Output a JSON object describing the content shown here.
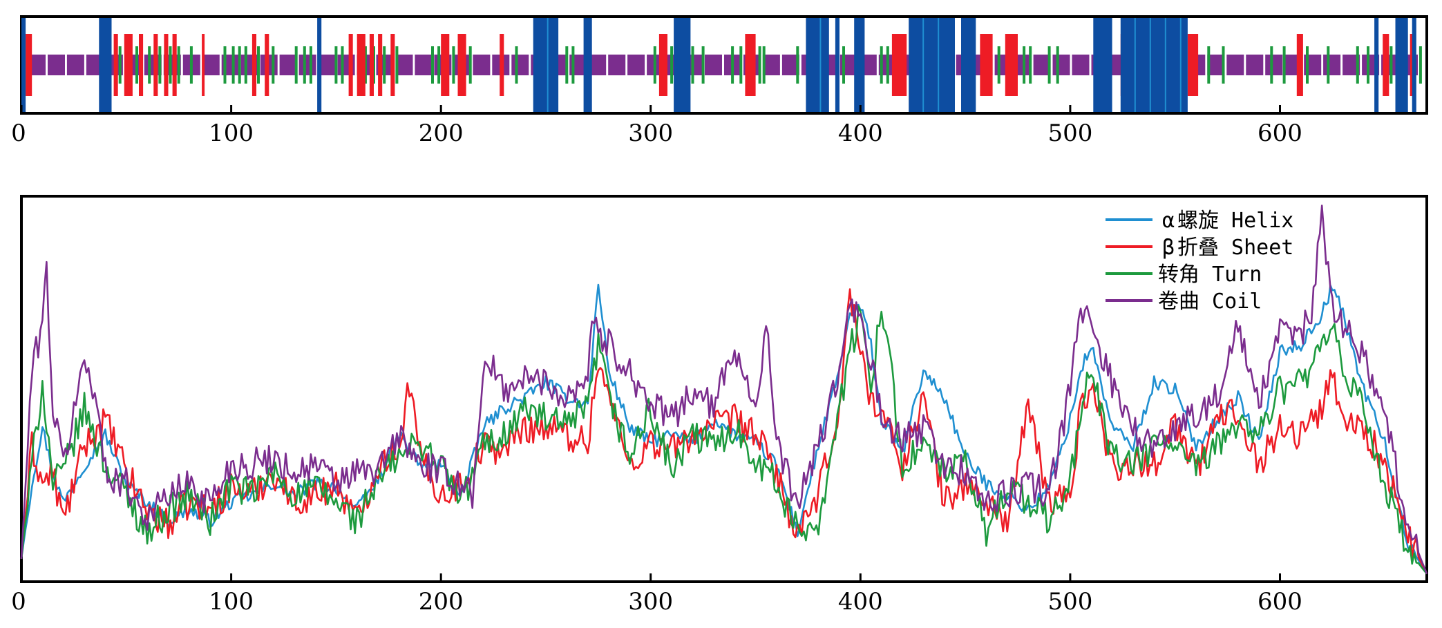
{
  "chart_data": [
    {
      "type": "bar",
      "xlim": [
        0,
        670
      ],
      "xticks": [
        "0",
        "100",
        "200",
        "300",
        "400",
        "500",
        "600"
      ],
      "colors": {
        "helix": "#0d4da1",
        "helix_light": "#1f8fd1",
        "sheet": "#ee1c25",
        "turn": "#1d9a3e",
        "coil": "#7b2d8e"
      },
      "helix_regions": [
        [
          0,
          2
        ],
        [
          37,
          43
        ],
        [
          141,
          143
        ],
        [
          244,
          256
        ],
        [
          268,
          272
        ],
        [
          311,
          319
        ],
        [
          374,
          385
        ],
        [
          388,
          390
        ],
        [
          397,
          402
        ],
        [
          423,
          445
        ],
        [
          448,
          455
        ],
        [
          511,
          520
        ],
        [
          524,
          556
        ],
        [
          645,
          647
        ],
        [
          655,
          661
        ],
        [
          663,
          665
        ]
      ],
      "sheet_regions": [
        [
          2,
          5
        ],
        [
          44,
          46
        ],
        [
          49,
          53
        ],
        [
          56,
          58
        ],
        [
          63,
          65
        ],
        [
          68,
          70
        ],
        [
          72,
          74
        ],
        [
          86,
          87
        ],
        [
          110,
          112
        ],
        [
          116,
          118
        ],
        [
          156,
          158
        ],
        [
          160,
          164
        ],
        [
          166,
          168
        ],
        [
          170,
          172
        ],
        [
          176,
          178
        ],
        [
          200,
          204
        ],
        [
          208,
          212
        ],
        [
          228,
          230
        ],
        [
          304,
          308
        ],
        [
          345,
          350
        ],
        [
          415,
          422
        ],
        [
          457,
          463
        ],
        [
          469,
          475
        ],
        [
          524,
          528
        ],
        [
          556,
          561
        ],
        [
          608,
          611
        ],
        [
          649,
          652
        ],
        [
          662,
          664
        ]
      ],
      "turn_positions": [
        42,
        47,
        55,
        61,
        66,
        71,
        75,
        81,
        97,
        101,
        104,
        107,
        113,
        120,
        131,
        135,
        138,
        150,
        153,
        157,
        164,
        168,
        173,
        179,
        196,
        199,
        206,
        214,
        236,
        252,
        260,
        263,
        302,
        306,
        310,
        320,
        325,
        339,
        343,
        352,
        354,
        370,
        392,
        410,
        413,
        425,
        454,
        466,
        478,
        481,
        490,
        494,
        566,
        573,
        596,
        602,
        613,
        623,
        637,
        642,
        653,
        667
      ],
      "coil_segments": 72
    },
    {
      "type": "line",
      "xlim": [
        0,
        670
      ],
      "xticks": [
        "0",
        "100",
        "200",
        "300",
        "400",
        "500",
        "600"
      ],
      "series": [
        {
          "name": "α螺旋 Helix",
          "color": "#1f8fd1",
          "x": [
            0,
            5,
            10,
            15,
            20,
            30,
            40,
            50,
            60,
            70,
            80,
            90,
            100,
            110,
            120,
            130,
            140,
            150,
            160,
            170,
            180,
            190,
            200,
            210,
            220,
            230,
            240,
            250,
            260,
            270,
            275,
            280,
            290,
            300,
            310,
            320,
            330,
            340,
            350,
            360,
            370,
            380,
            390,
            395,
            400,
            405,
            410,
            420,
            430,
            440,
            450,
            460,
            470,
            480,
            490,
            500,
            505,
            510,
            520,
            530,
            540,
            550,
            560,
            570,
            580,
            590,
            600,
            610,
            620,
            625,
            630,
            640,
            650,
            660,
            670
          ],
          "y": [
            0.05,
            0.25,
            0.4,
            0.28,
            0.2,
            0.3,
            0.38,
            0.25,
            0.2,
            0.15,
            0.18,
            0.15,
            0.2,
            0.22,
            0.25,
            0.22,
            0.25,
            0.24,
            0.18,
            0.26,
            0.38,
            0.3,
            0.3,
            0.22,
            0.4,
            0.45,
            0.48,
            0.52,
            0.48,
            0.46,
            0.78,
            0.55,
            0.4,
            0.36,
            0.38,
            0.36,
            0.42,
            0.38,
            0.36,
            0.3,
            0.12,
            0.35,
            0.55,
            0.7,
            0.72,
            0.62,
            0.42,
            0.33,
            0.55,
            0.48,
            0.32,
            0.25,
            0.22,
            0.18,
            0.24,
            0.42,
            0.55,
            0.62,
            0.4,
            0.35,
            0.52,
            0.5,
            0.35,
            0.42,
            0.48,
            0.36,
            0.6,
            0.62,
            0.7,
            0.78,
            0.7,
            0.5,
            0.36,
            0.1,
            0.01
          ]
        },
        {
          "name": "β折叠 Sheet",
          "color": "#ee1c25",
          "x": [
            0,
            5,
            10,
            15,
            20,
            30,
            40,
            50,
            60,
            70,
            80,
            90,
            100,
            110,
            120,
            130,
            140,
            150,
            160,
            170,
            180,
            185,
            190,
            200,
            210,
            220,
            230,
            240,
            250,
            260,
            270,
            275,
            280,
            290,
            300,
            310,
            320,
            330,
            340,
            350,
            360,
            370,
            380,
            390,
            395,
            400,
            405,
            410,
            420,
            430,
            440,
            450,
            460,
            470,
            480,
            490,
            500,
            505,
            510,
            520,
            530,
            540,
            550,
            560,
            570,
            580,
            590,
            600,
            610,
            620,
            625,
            630,
            640,
            650,
            660,
            670
          ],
          "y": [
            0.05,
            0.35,
            0.25,
            0.28,
            0.15,
            0.35,
            0.42,
            0.28,
            0.18,
            0.14,
            0.2,
            0.18,
            0.24,
            0.22,
            0.28,
            0.2,
            0.22,
            0.25,
            0.15,
            0.3,
            0.35,
            0.52,
            0.32,
            0.22,
            0.25,
            0.35,
            0.34,
            0.4,
            0.4,
            0.38,
            0.36,
            0.58,
            0.48,
            0.3,
            0.36,
            0.34,
            0.38,
            0.4,
            0.42,
            0.38,
            0.28,
            0.1,
            0.22,
            0.45,
            0.76,
            0.6,
            0.48,
            0.44,
            0.3,
            0.48,
            0.2,
            0.25,
            0.2,
            0.15,
            0.45,
            0.2,
            0.22,
            0.45,
            0.52,
            0.3,
            0.3,
            0.3,
            0.42,
            0.28,
            0.42,
            0.45,
            0.3,
            0.4,
            0.38,
            0.45,
            0.55,
            0.42,
            0.4,
            0.3,
            0.12,
            0.01
          ]
        },
        {
          "name": "转角 Turn",
          "color": "#1d9a3e",
          "x": [
            0,
            5,
            10,
            15,
            20,
            30,
            40,
            50,
            60,
            70,
            80,
            90,
            100,
            110,
            120,
            130,
            140,
            150,
            160,
            170,
            180,
            190,
            200,
            210,
            220,
            230,
            240,
            250,
            260,
            270,
            275,
            280,
            290,
            300,
            310,
            320,
            330,
            340,
            350,
            360,
            370,
            380,
            390,
            395,
            400,
            405,
            410,
            420,
            430,
            440,
            450,
            460,
            470,
            480,
            490,
            500,
            505,
            510,
            520,
            530,
            540,
            550,
            560,
            570,
            580,
            590,
            600,
            610,
            620,
            625,
            630,
            640,
            650,
            660,
            670
          ],
          "y": [
            0.05,
            0.3,
            0.52,
            0.25,
            0.28,
            0.45,
            0.3,
            0.22,
            0.12,
            0.18,
            0.22,
            0.15,
            0.25,
            0.22,
            0.28,
            0.22,
            0.24,
            0.2,
            0.15,
            0.26,
            0.32,
            0.36,
            0.3,
            0.2,
            0.35,
            0.38,
            0.45,
            0.42,
            0.4,
            0.45,
            0.62,
            0.48,
            0.32,
            0.45,
            0.28,
            0.38,
            0.35,
            0.4,
            0.32,
            0.25,
            0.12,
            0.15,
            0.45,
            0.6,
            0.7,
            0.5,
            0.75,
            0.3,
            0.35,
            0.28,
            0.3,
            0.12,
            0.25,
            0.2,
            0.15,
            0.25,
            0.45,
            0.55,
            0.32,
            0.3,
            0.35,
            0.36,
            0.28,
            0.35,
            0.42,
            0.38,
            0.5,
            0.52,
            0.6,
            0.66,
            0.55,
            0.45,
            0.25,
            0.08,
            0.01
          ]
        },
        {
          "name": "卷曲 Coil",
          "color": "#7b2d8e",
          "x": [
            0,
            5,
            10,
            12,
            15,
            20,
            30,
            35,
            40,
            50,
            60,
            70,
            80,
            90,
            100,
            110,
            120,
            130,
            140,
            150,
            160,
            170,
            180,
            190,
            200,
            210,
            215,
            220,
            225,
            230,
            240,
            250,
            260,
            270,
            272,
            275,
            280,
            290,
            300,
            310,
            320,
            330,
            340,
            350,
            355,
            360,
            370,
            380,
            390,
            395,
            400,
            405,
            410,
            420,
            430,
            440,
            450,
            460,
            470,
            480,
            490,
            500,
            505,
            510,
            520,
            530,
            540,
            550,
            560,
            570,
            580,
            590,
            600,
            610,
            615,
            620,
            625,
            630,
            640,
            650,
            660,
            670
          ],
          "y": [
            0.05,
            0.55,
            0.68,
            0.82,
            0.45,
            0.3,
            0.58,
            0.5,
            0.28,
            0.25,
            0.16,
            0.22,
            0.25,
            0.2,
            0.3,
            0.3,
            0.32,
            0.28,
            0.3,
            0.25,
            0.28,
            0.28,
            0.38,
            0.3,
            0.28,
            0.25,
            0.22,
            0.55,
            0.55,
            0.5,
            0.53,
            0.52,
            0.48,
            0.54,
            0.7,
            0.65,
            0.62,
            0.55,
            0.46,
            0.42,
            0.5,
            0.45,
            0.62,
            0.45,
            0.68,
            0.35,
            0.2,
            0.35,
            0.55,
            0.72,
            0.68,
            0.58,
            0.42,
            0.36,
            0.4,
            0.3,
            0.28,
            0.2,
            0.22,
            0.25,
            0.22,
            0.5,
            0.72,
            0.68,
            0.52,
            0.4,
            0.34,
            0.4,
            0.44,
            0.48,
            0.66,
            0.46,
            0.65,
            0.65,
            0.7,
            0.98,
            0.72,
            0.68,
            0.58,
            0.45,
            0.15,
            0.01
          ]
        }
      ],
      "legend": {
        "position": "top-right",
        "items": [
          {
            "symbol": "α",
            "label": "螺旋 Helix",
            "color": "#1f8fd1"
          },
          {
            "symbol": "β",
            "label": "折叠 Sheet",
            "color": "#ee1c25"
          },
          {
            "symbol": "",
            "label": "转角 Turn",
            "color": "#1d9a3e"
          },
          {
            "symbol": "",
            "label": "卷曲 Coil",
            "color": "#7b2d8e"
          }
        ]
      }
    }
  ]
}
